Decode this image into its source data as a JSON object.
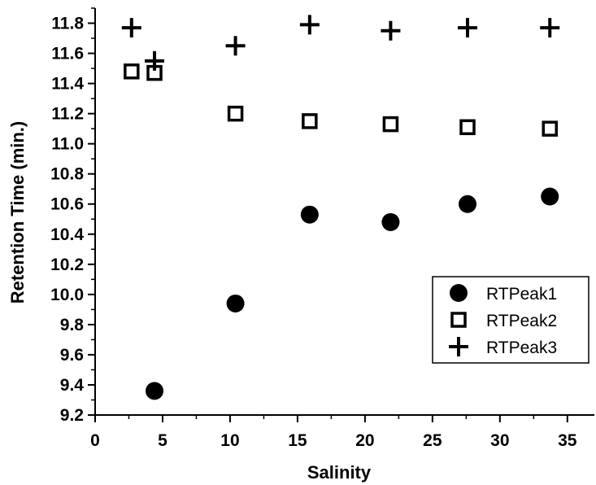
{
  "chart_data": {
    "type": "scatter",
    "xlabel": "Salinity",
    "ylabel": "Retention Time (min.)",
    "xlim": [
      0,
      37
    ],
    "ylim": [
      9.2,
      11.9
    ],
    "x_ticks": [
      0,
      5,
      10,
      15,
      20,
      25,
      30,
      35
    ],
    "y_ticks": [
      9.2,
      9.4,
      9.6,
      9.8,
      10.0,
      10.2,
      10.4,
      10.6,
      10.8,
      11.0,
      11.2,
      11.4,
      11.6,
      11.8
    ],
    "x_tick_labels": [
      "0",
      "5",
      "10",
      "15",
      "20",
      "25",
      "30",
      "35"
    ],
    "y_tick_labels": [
      "9.2",
      "9.4",
      "9.6",
      "9.8",
      "10.0",
      "10.2",
      "10.4",
      "10.6",
      "10.8",
      "11.0",
      "11.2",
      "11.4",
      "11.6",
      "11.8"
    ],
    "grid": false,
    "legend_position": "lower-right",
    "series": [
      {
        "name": "RTPeak1",
        "marker": "filled-circle",
        "x": [
          4.4,
          10.4,
          15.9,
          21.9,
          27.6,
          33.7
        ],
        "y": [
          9.36,
          9.94,
          10.53,
          10.48,
          10.6,
          10.65
        ]
      },
      {
        "name": "RTPeak2",
        "marker": "open-square",
        "x": [
          2.7,
          4.4,
          10.4,
          15.9,
          21.9,
          27.6,
          33.7
        ],
        "y": [
          11.48,
          11.47,
          11.2,
          11.15,
          11.13,
          11.11,
          11.1
        ]
      },
      {
        "name": "RTPeak3",
        "marker": "plus",
        "x": [
          2.7,
          4.4,
          10.4,
          15.9,
          21.9,
          27.6,
          33.7
        ],
        "y": [
          11.77,
          11.55,
          11.65,
          11.79,
          11.75,
          11.77,
          11.77
        ]
      }
    ]
  }
}
